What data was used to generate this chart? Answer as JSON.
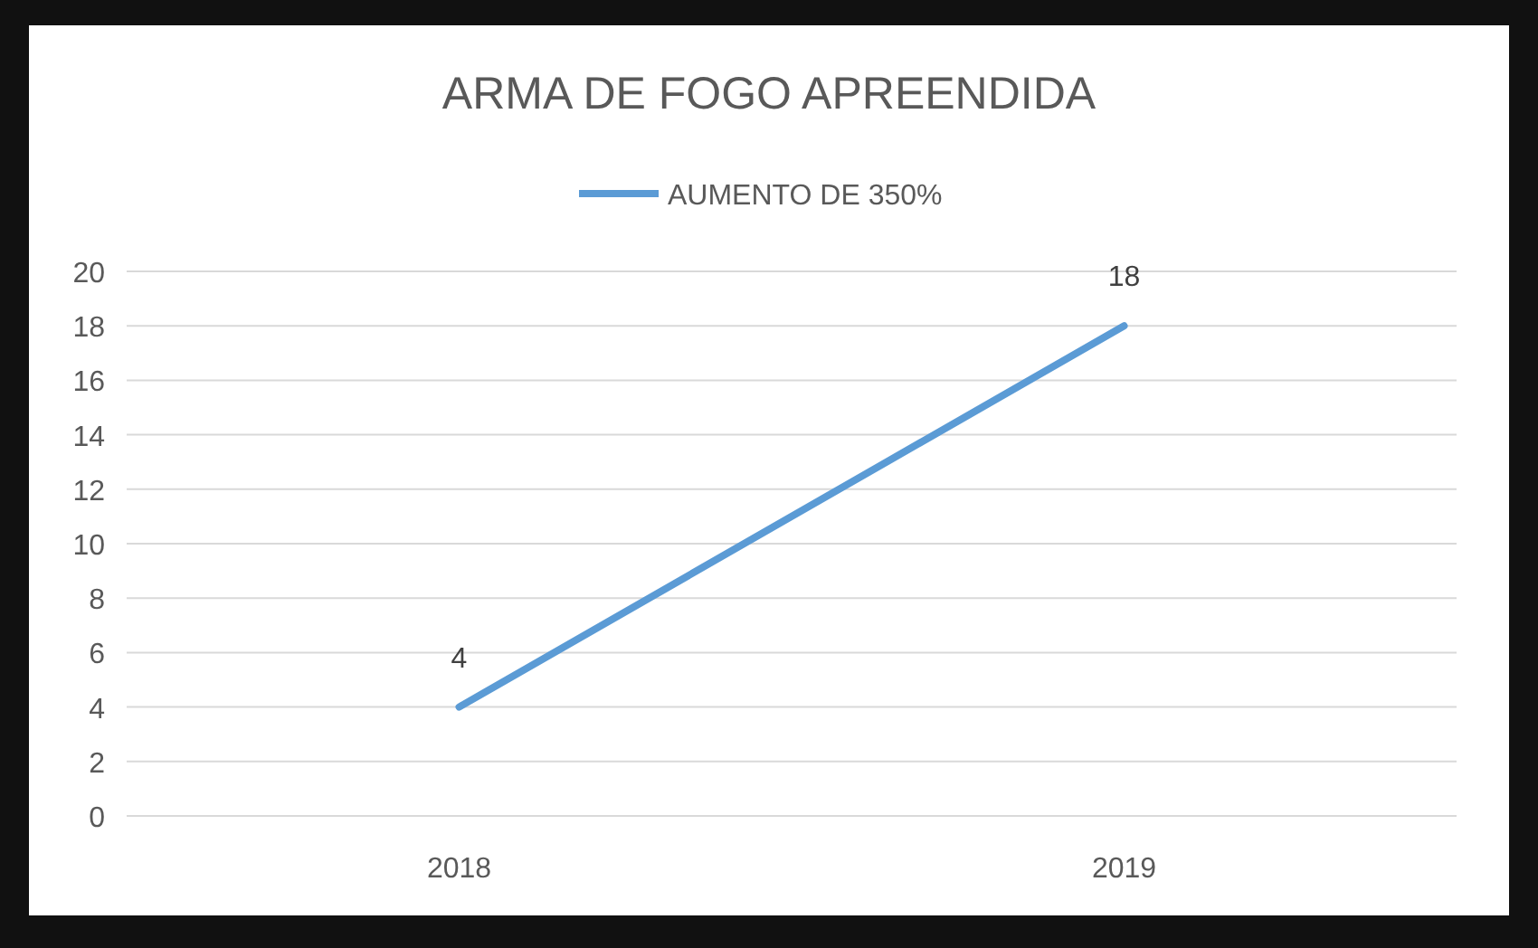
{
  "chart_data": {
    "type": "line",
    "title": "ARMA DE FOGO APREENDIDA",
    "categories": [
      "2018",
      "2019"
    ],
    "series": [
      {
        "name": "AUMENTO DE 350%",
        "color": "#5b9bd5",
        "values": [
          4,
          18
        ]
      }
    ],
    "ylim": [
      0,
      20
    ],
    "yticks": [
      0,
      2,
      4,
      6,
      8,
      10,
      12,
      14,
      16,
      18,
      20
    ],
    "grid": "y",
    "legend": "top",
    "data_labels": true,
    "marker": "none"
  }
}
